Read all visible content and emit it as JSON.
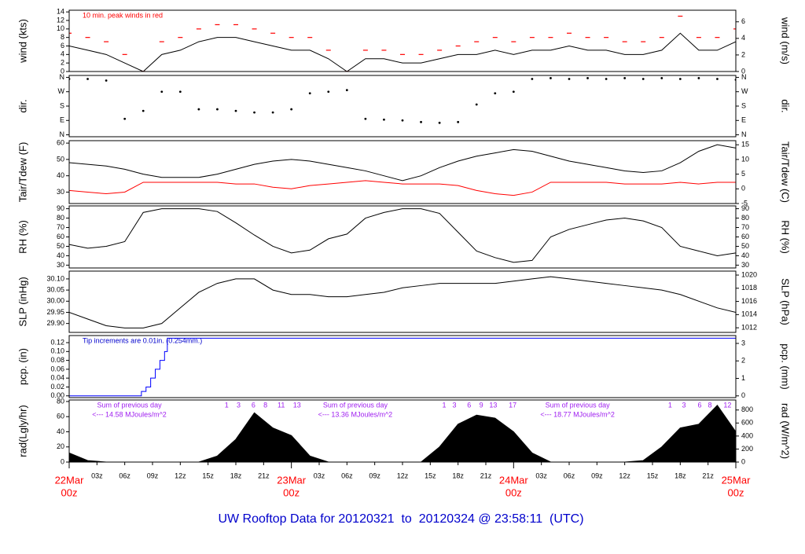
{
  "page_title": "UW Rooftop Data for 20120321  to  20120324 @ 23:58:11  (UTC)",
  "chart_data": [
    {
      "type": "line",
      "ylabel": "wind (kts)",
      "y2label": "wind (m/s)",
      "annotation": "10 min. peak winds in red",
      "annotation_color": "#ff0000",
      "xlim": [
        0,
        72
      ],
      "ylim": [
        0,
        14.4
      ],
      "yticks": [
        0,
        2,
        4,
        6,
        8,
        10,
        12,
        14
      ],
      "y2lim": [
        0,
        7.4
      ],
      "y2ticks": [
        0,
        2,
        4,
        6
      ],
      "x": [
        0,
        2,
        4,
        6,
        8,
        10,
        12,
        14,
        16,
        18,
        20,
        22,
        24,
        26,
        28,
        30,
        32,
        34,
        36,
        38,
        40,
        42,
        44,
        46,
        48,
        50,
        52,
        54,
        56,
        58,
        60,
        62,
        64,
        66,
        68,
        70,
        72
      ],
      "series": [
        {
          "color": "#000000",
          "style": "line",
          "values": [
            6,
            5,
            4,
            2,
            0,
            4,
            5,
            7,
            8,
            8,
            7,
            6,
            5,
            5,
            3,
            0,
            3,
            3,
            2,
            2,
            3,
            4,
            4,
            5,
            4,
            5,
            5,
            6,
            5,
            5,
            4,
            4,
            5,
            9,
            5,
            5,
            7
          ]
        },
        {
          "color": "#ff0000",
          "style": "dash",
          "values": [
            9,
            8,
            7,
            4,
            0,
            7,
            8,
            10,
            11,
            11,
            10,
            9,
            8,
            8,
            5,
            0,
            5,
            5,
            4,
            4,
            5,
            6,
            7,
            8,
            7,
            8,
            8,
            9,
            8,
            8,
            7,
            7,
            8,
            13,
            8,
            8,
            10
          ]
        }
      ]
    },
    {
      "type": "scatter",
      "ylabel": "dir.",
      "y2label": "dir.",
      "xlim": [
        0,
        72
      ],
      "ylim": [
        -12,
        372
      ],
      "yticks": [
        {
          "value": 0,
          "label": "N"
        },
        {
          "value": 90,
          "label": "E"
        },
        {
          "value": 180,
          "label": "S"
        },
        {
          "value": 270,
          "label": "W"
        },
        {
          "value": 360,
          "label": "N"
        }
      ],
      "y2lim": [
        -12,
        372
      ],
      "y2ticks": [
        {
          "value": 0,
          "label": "N"
        },
        {
          "value": 90,
          "label": "E"
        },
        {
          "value": 180,
          "label": "S"
        },
        {
          "value": 270,
          "label": "W"
        },
        {
          "value": 360,
          "label": "N"
        }
      ],
      "x": [
        0,
        2,
        4,
        6,
        8,
        10,
        12,
        14,
        16,
        18,
        20,
        22,
        24,
        26,
        28,
        30,
        32,
        34,
        36,
        38,
        40,
        42,
        44,
        46,
        48,
        50,
        52,
        54,
        56,
        58,
        60,
        62,
        64,
        66,
        68,
        70,
        72
      ],
      "series": [
        {
          "color": "#000000",
          "style": "points",
          "values": [
            350,
            350,
            340,
            100,
            150,
            270,
            270,
            160,
            160,
            150,
            140,
            140,
            160,
            260,
            270,
            280,
            100,
            95,
            90,
            80,
            75,
            80,
            190,
            260,
            270,
            350,
            355,
            350,
            355,
            350,
            355,
            350,
            355,
            350,
            355,
            350,
            345
          ]
        }
      ]
    },
    {
      "type": "line",
      "ylabel": "Tair/Tdew (F)",
      "y2label": "Tair/Tdew (C)",
      "xlim": [
        0,
        72
      ],
      "ylim": [
        23,
        61.5
      ],
      "yticks": [
        30,
        40,
        50,
        60
      ],
      "y2lim": [
        -5,
        16.4
      ],
      "y2ticks": [
        -5,
        0,
        5,
        10,
        15
      ],
      "x": [
        0,
        2,
        4,
        6,
        8,
        10,
        12,
        14,
        16,
        18,
        20,
        22,
        24,
        26,
        28,
        30,
        32,
        34,
        36,
        38,
        40,
        42,
        44,
        46,
        48,
        50,
        52,
        54,
        56,
        58,
        60,
        62,
        64,
        66,
        68,
        70,
        72
      ],
      "series": [
        {
          "color": "#000000",
          "style": "line",
          "values": [
            48,
            47,
            46,
            44,
            41,
            39,
            39,
            39,
            41,
            44,
            47,
            49,
            50,
            49,
            47,
            45,
            43,
            40,
            37,
            40,
            45,
            49,
            52,
            54,
            56,
            55,
            52,
            49,
            47,
            45,
            43,
            42,
            43,
            48,
            55,
            59,
            57
          ]
        },
        {
          "color": "#ff0000",
          "style": "line",
          "values": [
            31,
            30,
            29,
            30,
            36,
            36,
            36,
            36,
            36,
            35,
            35,
            33,
            32,
            34,
            35,
            36,
            37,
            36,
            35,
            35,
            35,
            34,
            31,
            29,
            28,
            30,
            36,
            36,
            36,
            36,
            35,
            35,
            35,
            36,
            35,
            36,
            36
          ]
        }
      ]
    },
    {
      "type": "line",
      "ylabel": "RH (%)",
      "y2label": "RH (%)",
      "xlim": [
        0,
        72
      ],
      "ylim": [
        27,
        93
      ],
      "yticks": [
        30,
        40,
        50,
        60,
        70,
        80,
        90
      ],
      "y2lim": [
        27,
        93
      ],
      "y2ticks": [
        30,
        40,
        50,
        60,
        70,
        80,
        90
      ],
      "x": [
        0,
        2,
        4,
        6,
        8,
        10,
        12,
        14,
        16,
        18,
        20,
        22,
        24,
        26,
        28,
        30,
        32,
        34,
        36,
        38,
        40,
        42,
        44,
        46,
        48,
        50,
        52,
        54,
        56,
        58,
        60,
        62,
        64,
        66,
        68,
        70,
        72
      ],
      "series": [
        {
          "color": "#000000",
          "style": "line",
          "values": [
            52,
            48,
            50,
            55,
            86,
            90,
            90,
            90,
            87,
            75,
            62,
            50,
            43,
            46,
            58,
            63,
            80,
            86,
            90,
            90,
            85,
            65,
            45,
            38,
            33,
            35,
            60,
            68,
            73,
            78,
            80,
            77,
            70,
            50,
            45,
            40,
            43
          ]
        }
      ]
    },
    {
      "type": "line",
      "ylabel": "SLP (inHg)",
      "y2label": "SLP (hPa)",
      "xlim": [
        0,
        72
      ],
      "ylim": [
        29.86,
        30.135
      ],
      "yticks": [
        {
          "value": 29.9,
          "label": "29.90"
        },
        29.95,
        {
          "value": 30,
          "label": "30.00"
        },
        30.05,
        {
          "value": 30.1,
          "label": "30.10"
        }
      ],
      "y2lim": [
        1011.3,
        1020.6
      ],
      "y2ticks": [
        1012,
        1014,
        1016,
        1018,
        1020
      ],
      "x": [
        0,
        2,
        4,
        6,
        8,
        10,
        12,
        14,
        16,
        18,
        20,
        22,
        24,
        26,
        28,
        30,
        32,
        34,
        36,
        38,
        40,
        42,
        44,
        46,
        48,
        50,
        52,
        54,
        56,
        58,
        60,
        62,
        64,
        66,
        68,
        70,
        72
      ],
      "series": [
        {
          "color": "#000000",
          "style": "line",
          "values": [
            29.95,
            29.92,
            29.89,
            29.88,
            29.88,
            29.9,
            29.97,
            30.04,
            30.08,
            30.1,
            30.1,
            30.05,
            30.03,
            30.03,
            30.02,
            30.02,
            30.03,
            30.04,
            30.06,
            30.07,
            30.08,
            30.08,
            30.08,
            30.08,
            30.09,
            30.1,
            30.11,
            30.1,
            30.09,
            30.08,
            30.07,
            30.06,
            30.05,
            30.03,
            30.0,
            29.97,
            29.95
          ]
        }
      ]
    },
    {
      "type": "line",
      "ylabel": "pcp. (in)",
      "y2label": "pcp. (mm)",
      "annotation": "Tip increments are 0.01in. (0.254mm.)",
      "annotation_color": "#0000cc",
      "xlim": [
        0,
        72
      ],
      "ylim": [
        -0.004,
        0.136
      ],
      "yticks": [
        {
          "value": 0,
          "label": "0.00"
        },
        0.02,
        0.04,
        0.06,
        0.08,
        {
          "value": 0.1,
          "label": "0.10"
        },
        0.12
      ],
      "y2lim": [
        -0.1,
        3.45
      ],
      "y2ticks": [
        0,
        1,
        2,
        3
      ],
      "x": [
        0,
        7.4,
        7.8,
        8.3,
        8.8,
        9.3,
        9.8,
        10.3,
        10.6,
        72
      ],
      "series": [
        {
          "color": "#0000ff",
          "style": "step",
          "values": [
            0,
            0,
            0.01,
            0.02,
            0.04,
            0.06,
            0.08,
            0.1,
            0.13,
            0.13
          ]
        }
      ]
    },
    {
      "type": "area",
      "ylabel": "rad(Lgly/hr)",
      "y2label": "rad (W/m^2)",
      "annotation_color": "#a020f0",
      "xlim": [
        0,
        72
      ],
      "ylim": [
        0,
        82
      ],
      "yticks": [
        0,
        20,
        40,
        60,
        80
      ],
      "y2lim": [
        0,
        954
      ],
      "y2ticks": [
        0,
        200,
        400,
        600,
        800
      ],
      "xticks": [
        {
          "value": 0,
          "label": "22Mar",
          "label2": "00z"
        },
        {
          "value": 3,
          "label": "03z"
        },
        {
          "value": 6,
          "label": "06z"
        },
        {
          "value": 9,
          "label": "09z"
        },
        {
          "value": 12,
          "label": "12z"
        },
        {
          "value": 15,
          "label": "15z"
        },
        {
          "value": 18,
          "label": "18z"
        },
        {
          "value": 21,
          "label": "21z"
        },
        {
          "value": 24,
          "label": "23Mar",
          "label2": "00z"
        },
        {
          "value": 27,
          "label": "03z"
        },
        {
          "value": 30,
          "label": "06z"
        },
        {
          "value": 33,
          "label": "09z"
        },
        {
          "value": 36,
          "label": "12z"
        },
        {
          "value": 39,
          "label": "15z"
        },
        {
          "value": 42,
          "label": "18z"
        },
        {
          "value": 45,
          "label": "21z"
        },
        {
          "value": 48,
          "label": "24Mar",
          "label2": "00z"
        },
        {
          "value": 51,
          "label": "03z"
        },
        {
          "value": 54,
          "label": "06z"
        },
        {
          "value": 57,
          "label": "09z"
        },
        {
          "value": 60,
          "label": "12z"
        },
        {
          "value": 63,
          "label": "15z"
        },
        {
          "value": 66,
          "label": "18z"
        },
        {
          "value": 69,
          "label": "21z"
        },
        {
          "value": 72,
          "label": "25Mar",
          "label2": "00z"
        }
      ],
      "daily_sums": [
        {
          "x": 6.5,
          "lines": [
            "Sum of previous day",
            "<--- 14.58 MJoules/m^2"
          ]
        },
        {
          "x": 30.9,
          "lines": [
            "Sum of previous day",
            "<--- 13.36 MJoules/m^2"
          ]
        },
        {
          "x": 54.9,
          "lines": [
            "Sum of previous day",
            "<--- 18.77 MJoules/m^2"
          ]
        }
      ],
      "hour_marks": [
        {
          "x": 17,
          "label": "1"
        },
        {
          "x": 18.3,
          "label": "3"
        },
        {
          "x": 19.9,
          "label": "6"
        },
        {
          "x": 21.2,
          "label": "8"
        },
        {
          "x": 22.9,
          "label": "11"
        },
        {
          "x": 24.6,
          "label": "13"
        },
        {
          "x": 40.5,
          "label": "1"
        },
        {
          "x": 41.6,
          "label": "3"
        },
        {
          "x": 43.2,
          "label": "6"
        },
        {
          "x": 44.5,
          "label": "9"
        },
        {
          "x": 45.8,
          "label": "13"
        },
        {
          "x": 47.9,
          "label": "17"
        },
        {
          "x": 64.9,
          "label": "1"
        },
        {
          "x": 66.4,
          "label": "3"
        },
        {
          "x": 68.1,
          "label": "6"
        },
        {
          "x": 69.2,
          "label": "8"
        },
        {
          "x": 71.1,
          "label": "12"
        }
      ],
      "x": [
        0,
        2,
        4,
        6,
        8,
        10,
        12,
        14,
        16,
        18,
        20,
        22,
        24,
        26,
        28,
        30,
        32,
        34,
        36,
        38,
        40,
        42,
        44,
        46,
        48,
        50,
        52,
        54,
        56,
        58,
        60,
        62,
        64,
        66,
        68,
        70,
        72
      ],
      "series": [
        {
          "color": "#000000",
          "style": "area",
          "values": [
            12,
            2,
            0,
            0,
            0,
            0,
            0,
            0,
            8,
            30,
            65,
            45,
            35,
            8,
            0,
            0,
            0,
            0,
            0,
            0,
            20,
            50,
            62,
            58,
            40,
            12,
            0,
            0,
            0,
            0,
            0,
            2,
            20,
            45,
            50,
            75,
            40
          ]
        }
      ]
    }
  ]
}
